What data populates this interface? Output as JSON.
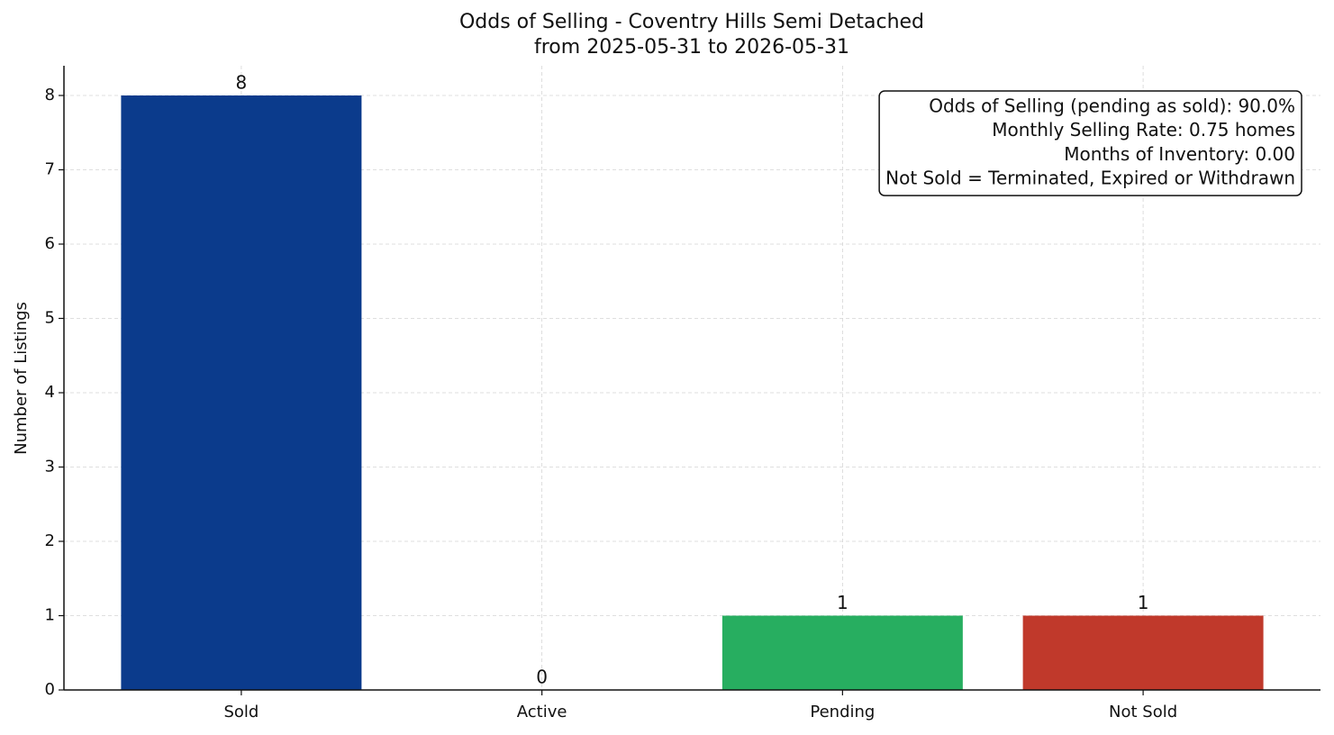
{
  "chart_data": {
    "type": "bar",
    "title": "Odds of Selling - Coventry Hills Semi Detached",
    "subtitle": "from 2025-05-31 to 2026-05-31",
    "ylabel": "Number of Listings",
    "categories": [
      "Sold",
      "Active",
      "Pending",
      "Not Sold"
    ],
    "values": [
      8,
      0,
      1,
      1
    ],
    "colors": [
      "#0b3b8c",
      "#f39c12",
      "#27ae60",
      "#c0392b"
    ],
    "ylim": [
      0,
      8.4
    ],
    "yticks": [
      0,
      1,
      2,
      3,
      4,
      5,
      6,
      7,
      8
    ],
    "grid": true,
    "annotation": [
      "Odds of Selling (pending as sold): 90.0%",
      "Monthly Selling Rate: 0.75 homes",
      "Months of Inventory: 0.00",
      "Not Sold = Terminated, Expired or Withdrawn"
    ]
  }
}
